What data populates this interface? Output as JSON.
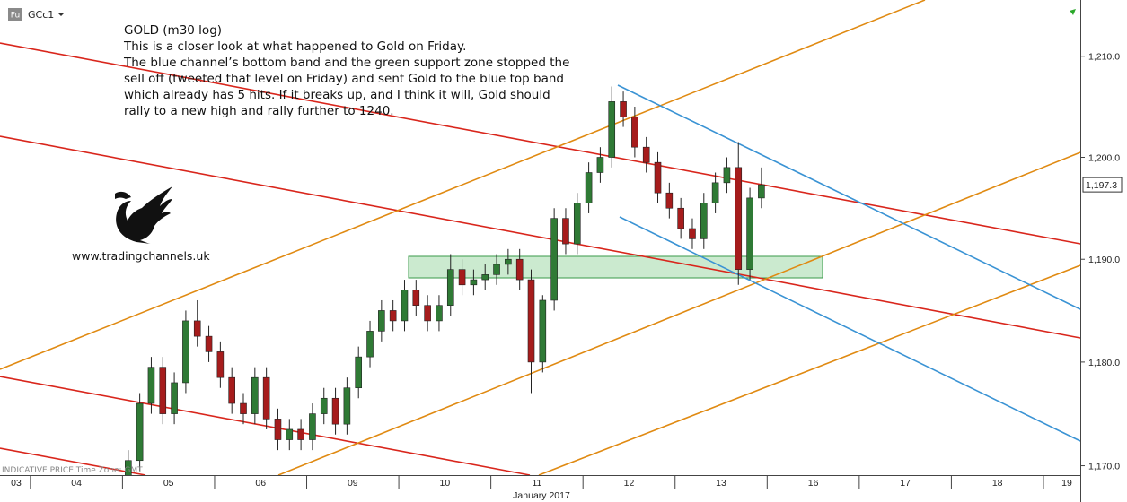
{
  "chart_data": {
    "type": "candlestick",
    "title": "GOLD (m30 log)",
    "annotation": [
      "This is a closer look at what happened to Gold on Friday.",
      "The blue channel’s bottom band and the green support zone stopped the",
      "sell off (tweeted that level on Friday) and sent Gold to the blue top band",
      "which already has 5 hits. If it breaks up, and I think it will, Gold should",
      "rally to a new high and rally further to 1240."
    ],
    "website": "www.tradingchannels.uk",
    "symbol": "GCc1",
    "symbol_badge": "Fu",
    "footer_note": "INDICATIVE PRICE   Time Zone: GMT",
    "x_axis_label": "January 2017",
    "log_scale": true,
    "up_color": "#2f7a35",
    "down_color": "#a61c1c",
    "ylim": [
      1169.1,
      1215.6
    ],
    "yticks": [
      {
        "value": 1170,
        "label": "1,170.0"
      },
      {
        "value": 1180,
        "label": "1,180.0"
      },
      {
        "value": 1190,
        "label": "1,190.0"
      },
      {
        "value": 1200,
        "label": "1,200.0"
      },
      {
        "value": 1210,
        "label": "1,210.0"
      }
    ],
    "last_price": {
      "value": 1197.3,
      "label": "1,197.3"
    },
    "xlim": [
      -0.33,
      11.4
    ],
    "xticks": [
      {
        "value": -1,
        "label": "03"
      },
      {
        "value": 0,
        "label": "04"
      },
      {
        "value": 1,
        "label": "05"
      },
      {
        "value": 2,
        "label": "06"
      },
      {
        "value": 3,
        "label": "09"
      },
      {
        "value": 4,
        "label": "10"
      },
      {
        "value": 5,
        "label": "11"
      },
      {
        "value": 6,
        "label": "12"
      },
      {
        "value": 7,
        "label": "13"
      },
      {
        "value": 8,
        "label": "16"
      },
      {
        "value": 9,
        "label": "17"
      },
      {
        "value": 10,
        "label": "18"
      },
      {
        "value": 11,
        "label": "19"
      }
    ],
    "x": [
      1.0625,
      1.1875,
      1.3125,
      1.4375,
      1.5625,
      1.6875,
      1.8125,
      1.9375,
      2.0625,
      2.1875,
      2.3125,
      2.4375,
      2.5625,
      2.6875,
      2.8125,
      2.9375,
      3.0625,
      3.1875,
      3.3125,
      3.4375,
      3.5625,
      3.6875,
      3.8125,
      3.9375,
      4.0625,
      4.1875,
      4.3125,
      4.4375,
      4.5625,
      4.6875,
      4.8125,
      4.9375,
      5.0625,
      5.1875,
      5.3125,
      5.4375,
      5.5625,
      5.6875,
      5.8125,
      5.9375,
      6.0625,
      6.1875,
      6.3125,
      6.4375,
      6.5625,
      6.6875,
      6.8125,
      6.9375,
      7.0625,
      7.1875,
      7.3125,
      7.4375,
      7.5625,
      7.6875,
      7.8125,
      7.9375
    ],
    "open": [
      1168.0,
      1170.5,
      1176.0,
      1179.5,
      1175.0,
      1178.0,
      1184.0,
      1182.5,
      1181.0,
      1178.5,
      1176.0,
      1175.0,
      1178.5,
      1174.5,
      1172.5,
      1173.5,
      1172.5,
      1175.0,
      1176.5,
      1174.0,
      1177.5,
      1180.5,
      1183.0,
      1185.0,
      1184.0,
      1187.0,
      1185.5,
      1184.0,
      1185.5,
      1189.0,
      1187.5,
      1188.0,
      1188.5,
      1189.5,
      1190.0,
      1188.0,
      1180.0,
      1186.0,
      1194.0,
      1191.5,
      1195.5,
      1198.5,
      1200.0,
      1205.5,
      1204.0,
      1201.0,
      1199.5,
      1196.5,
      1195.0,
      1193.0,
      1192.0,
      1195.5,
      1197.5,
      1199.0,
      1189.0,
      1196.0
    ],
    "high": [
      1171.5,
      1177.0,
      1180.5,
      1180.5,
      1179.0,
      1185.0,
      1186.0,
      1183.5,
      1182.0,
      1179.5,
      1177.0,
      1179.5,
      1179.5,
      1175.5,
      1174.5,
      1174.5,
      1176.0,
      1177.5,
      1177.5,
      1178.5,
      1181.5,
      1184.0,
      1186.0,
      1186.0,
      1188.0,
      1188.0,
      1186.5,
      1186.5,
      1190.5,
      1190.0,
      1189.0,
      1189.5,
      1190.5,
      1191.0,
      1191.0,
      1189.0,
      1186.5,
      1195.0,
      1195.0,
      1196.5,
      1199.5,
      1201.0,
      1207.0,
      1206.5,
      1205.0,
      1202.0,
      1200.5,
      1197.5,
      1196.0,
      1194.0,
      1196.5,
      1198.5,
      1200.0,
      1201.5,
      1197.0,
      1199.0
    ],
    "low": [
      1167.0,
      1169.5,
      1175.0,
      1174.0,
      1174.0,
      1177.0,
      1181.5,
      1180.0,
      1177.5,
      1175.0,
      1174.0,
      1174.0,
      1173.5,
      1171.5,
      1171.5,
      1171.5,
      1171.5,
      1174.0,
      1173.0,
      1173.0,
      1176.5,
      1179.5,
      1182.0,
      1183.0,
      1183.0,
      1184.5,
      1183.0,
      1183.0,
      1184.5,
      1186.5,
      1186.5,
      1187.0,
      1187.5,
      1188.5,
      1187.0,
      1177.0,
      1179.0,
      1185.0,
      1190.5,
      1190.5,
      1194.5,
      1197.5,
      1199.0,
      1203.0,
      1200.0,
      1198.5,
      1195.5,
      1194.0,
      1192.0,
      1191.0,
      1191.0,
      1194.5,
      1196.5,
      1187.5,
      1188.0,
      1195.0
    ],
    "close": [
      1170.5,
      1176.0,
      1179.5,
      1175.0,
      1178.0,
      1184.0,
      1182.5,
      1181.0,
      1178.5,
      1176.0,
      1175.0,
      1178.5,
      1174.5,
      1172.5,
      1173.5,
      1172.5,
      1175.0,
      1176.5,
      1174.0,
      1177.5,
      1180.5,
      1183.0,
      1185.0,
      1184.0,
      1187.0,
      1185.5,
      1184.0,
      1185.5,
      1189.0,
      1187.5,
      1188.0,
      1188.5,
      1189.5,
      1190.0,
      1188.0,
      1180.0,
      1186.0,
      1194.0,
      1191.5,
      1195.5,
      1198.5,
      1200.0,
      1205.5,
      1204.0,
      1201.0,
      1199.5,
      1196.5,
      1195.0,
      1193.0,
      1192.0,
      1195.5,
      1197.5,
      1199.0,
      1189.0,
      1196.0,
      1197.3
    ]
  }
}
